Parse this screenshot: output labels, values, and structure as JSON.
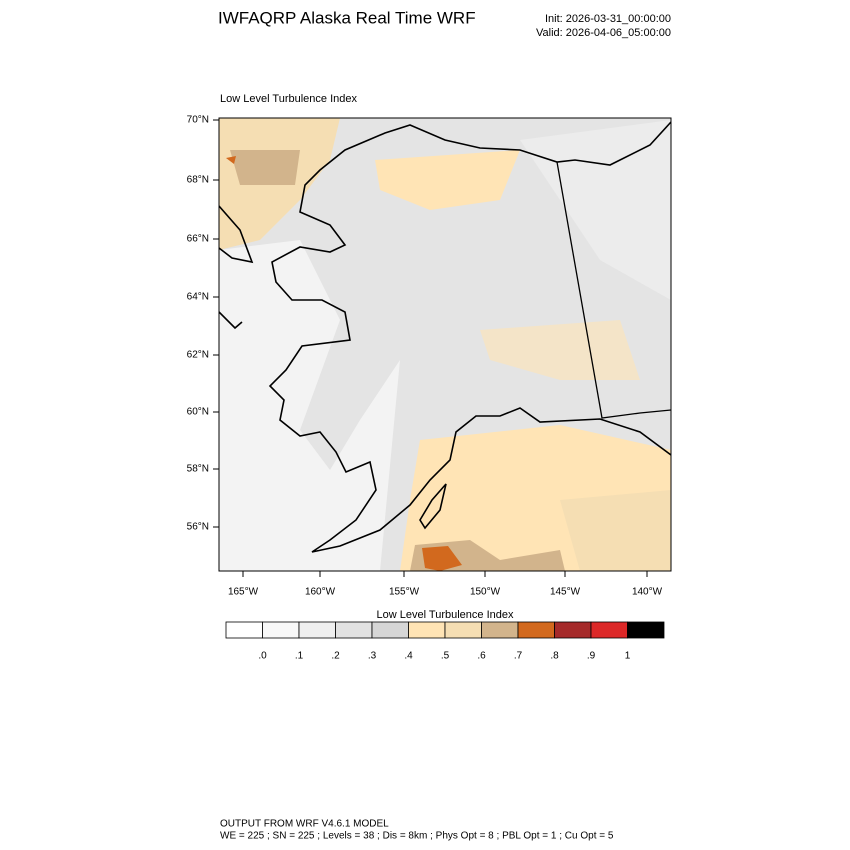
{
  "header": {
    "title": "IWFAQRP Alaska Real Time WRF",
    "init": "Init: 2026-03-31_00:00:00",
    "valid": "Valid: 2026-04-06_05:00:00"
  },
  "map": {
    "title": "Low Level Turbulence Index",
    "lat_labels": [
      "70°N",
      "68°N",
      "66°N",
      "64°N",
      "62°N",
      "60°N",
      "58°N",
      "56°N"
    ],
    "lon_labels": [
      "165°W",
      "160°W",
      "155°W",
      "150°W",
      "145°W",
      "140°W"
    ]
  },
  "colorbar": {
    "title": "Low Level Turbulence Index",
    "colors": [
      "#ffffff",
      "#f8f8f8",
      "#efefef",
      "#e2e2e2",
      "#d6d6d6",
      "#ffe4b5",
      "#f5deb3",
      "#d2b48c",
      "#d2691e",
      "#a52a2a",
      "#dc2828",
      "#000000"
    ],
    "labels": [
      ".0",
      ".1",
      ".2",
      ".3",
      ".4",
      ".5",
      ".6",
      ".7",
      ".8",
      ".9",
      "1"
    ]
  },
  "footer": {
    "line1": "OUTPUT FROM WRF V4.6.1 MODEL",
    "line2": "WE = 225 ; SN = 225 ; Levels = 38 ; Dis = 8km ; Phys Opt = 8 ; PBL Opt = 1 ; Cu Opt = 5"
  }
}
